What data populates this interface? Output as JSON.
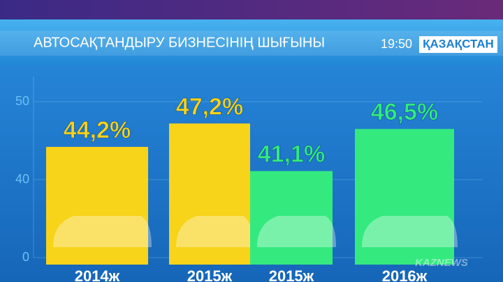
{
  "chart_data": {
    "type": "bar",
    "title": "АВТОСАҚТАНДЫРУ БИЗНЕСІНІҢ ШЫҒЫНЫ",
    "categories": [
      "2014ж",
      "2015ж",
      "2015ж",
      "2016ж"
    ],
    "values": [
      44.2,
      47.2,
      41.1,
      46.5
    ],
    "value_labels": [
      "44,2%",
      "47,2%",
      "41,1%",
      "46,5%"
    ],
    "colors": [
      "#f7d319",
      "#f7d319",
      "#34ea7f",
      "#34ea7f"
    ],
    "ylim": [
      0,
      53
    ],
    "yticks": [
      0,
      40,
      50
    ],
    "axis_break": true,
    "grid": true
  },
  "time": "19:50",
  "channel": "ҚАЗАҚСТАН",
  "watermark": "KAZNEWS"
}
